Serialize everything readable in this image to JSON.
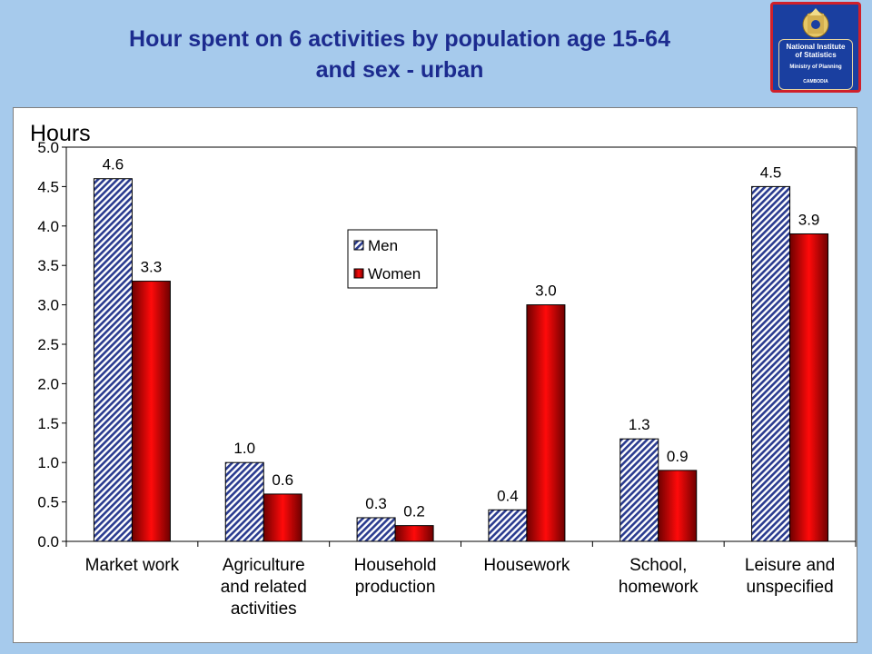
{
  "slide": {
    "title_line1": "Hour spent on 6 activities by population age 15-64",
    "title_line2": "and sex - urban"
  },
  "logo": {
    "line1": "National Institute",
    "line2": "of Statistics",
    "line3": "Ministry of Planning",
    "line4": "CAMBODIA"
  },
  "colors": {
    "background": "#a6caec",
    "title": "#1c2b8f",
    "men": "#2a3b8f",
    "women": "#cc0000"
  },
  "chart_data": {
    "type": "bar",
    "title": "",
    "ylabel": "Hours",
    "xlabel": "",
    "ylim": [
      0,
      5
    ],
    "yticks": [
      "0.0",
      "0.5",
      "1.0",
      "1.5",
      "2.0",
      "2.5",
      "3.0",
      "3.5",
      "4.0",
      "4.5",
      "5.0"
    ],
    "categories": [
      [
        "Market work"
      ],
      [
        "Agriculture",
        "and related",
        "activities"
      ],
      [
        "Household",
        "production"
      ],
      [
        "Housework"
      ],
      [
        "School,",
        "homework"
      ],
      [
        "Leisure and",
        "unspecified"
      ]
    ],
    "series": [
      {
        "name": "Men",
        "values": [
          4.6,
          1.0,
          0.3,
          0.4,
          1.3,
          4.5
        ],
        "labels": [
          "4.6",
          "1.0",
          "0.3",
          "0.4",
          "1.3",
          "4.5"
        ]
      },
      {
        "name": "Women",
        "values": [
          3.3,
          0.6,
          0.2,
          3.0,
          0.9,
          3.9
        ],
        "labels": [
          "3.3",
          "0.6",
          "0.2",
          "3.0",
          "0.9",
          "3.9"
        ]
      }
    ],
    "legend_position": "center-left",
    "grid": false
  }
}
